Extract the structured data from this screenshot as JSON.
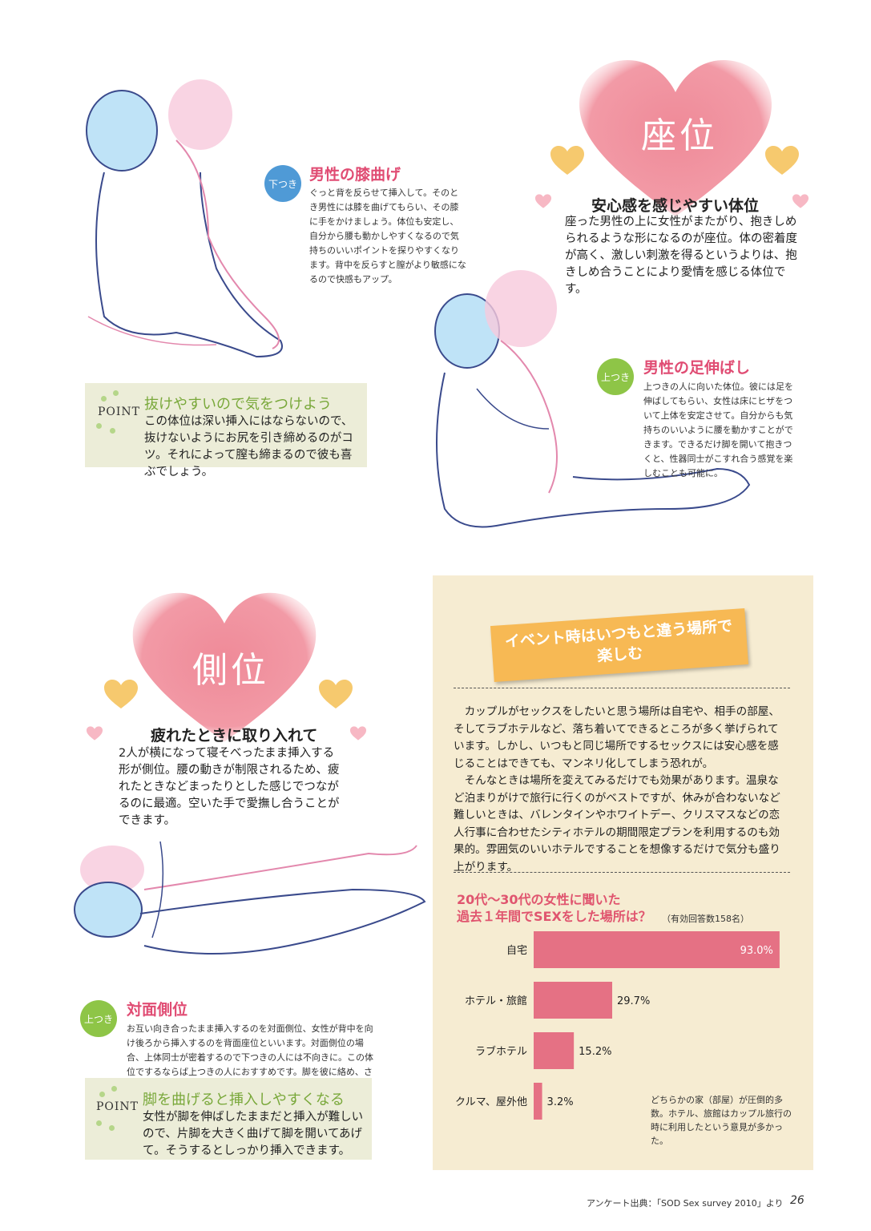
{
  "zai": {
    "title": "座位",
    "subtitle": "安心感を感じやすい体位",
    "intro": "座った男性の上に女性がまたがり、抱きしめられるような形になるのが座位。体の密着度が高く、激しい刺激を得るというよりは、抱きしめ合うことにより愛情を感じる体位です。",
    "pos1": {
      "badge": "下つき",
      "name": "男性の膝曲げ",
      "desc": "ぐっと背を反らせて挿入して。そのとき男性には膝を曲げてもらい、その膝に手をかけましょう。体位も安定し、自分から腰も動かしやすくなるので気持ちのいいポイントを探りやすくなります。背中を反らすと膣がより敏感になるので快感もアップ。"
    },
    "pos2": {
      "badge": "上つき",
      "name": "男性の足伸ばし",
      "desc": "上つきの人に向いた体位。彼には足を伸ばしてもらい、女性は床にヒザをついて上体を安定させて。自分からも気持ちのいいように腰を動かすことができます。できるだけ脚を開いて抱きつくと、性器同士がこすれ合う感覚を楽しむことも可能に。"
    },
    "point": {
      "label": "POINT",
      "title": "抜けやすいので気をつけよう",
      "text": "この体位は深い挿入にはならないので、抜けないようにお尻を引き締めるのがコツ。それによって膣も締まるので彼も喜ぶでしょう。"
    }
  },
  "sokui": {
    "title": "側位",
    "subtitle": "疲れたときに取り入れて",
    "intro": "2人が横になって寝そべったまま挿入する形が側位。腰の動きが制限されるため、疲れたときなどまったりとした感じでつながるのに最適。空いた手で愛撫し合うことができます。",
    "pos1": {
      "badge": "上つき",
      "name": "対面側位",
      "desc": "お互い向き合ったまま挿入するのを対面側位、女性が背中を向け後ろから挿入するのを背面座位といいます。対面側位の場合、上体同士が密着するので下つきの人には不向きに。この体位でするならば上つきの人におすすめです。脚を彼に絡め、さらなる密着感を味わって。"
    },
    "point": {
      "label": "POINT",
      "title": "脚を曲げると挿入しやすくなる",
      "text": "女性が脚を伸ばしたままだと挿入が難しいので、片脚を大きく曲げて脚を開いてあげて。そうするとしっかり挿入できます。"
    }
  },
  "event": {
    "title_line1": "イベント時はいつもと違う場所で",
    "title_line2": "楽しむ",
    "para1": "カップルがセックスをしたいと思う場所は自宅や、相手の部屋、そしてラブホテルなど、落ち着いてできるところが多く挙げられています。しかし、いつもと同じ場所でするセックスには安心感を感じることはできても、マンネリ化してしまう恐れが。",
    "para2": "そんなときは場所を変えてみるだけでも効果があります。温泉など泊まりがけで旅行に行くのがベストですが、休みが合わないなど難しいときは、バレンタインやホワイトデー、クリスマスなどの恋人行事に合わせたシティホテルの期間限定プランを利用するのも効果的。雰囲気のいいホテルですることを想像するだけで気分も盛り上がります。",
    "survey_line1": "20代～30代の女性に聞いた",
    "survey_line2": "過去１年間でSEXをした場所は？",
    "survey_n": "（有効回答数158名）",
    "note": "どちらかの家（部屋）が圧倒的多数。ホテル、旅館はカップル旅行の時に利用したという意見が多かった。"
  },
  "chart_data": {
    "type": "bar",
    "orientation": "horizontal",
    "categories": [
      "自宅",
      "ホテル・旅館",
      "ラブホテル",
      "クルマ、屋外他"
    ],
    "values": [
      93.0,
      29.7,
      15.2,
      3.2
    ],
    "value_labels": [
      "93.0%",
      "29.7%",
      "15.2%",
      "3.2%"
    ],
    "unit": "%",
    "xlim": [
      0,
      100
    ],
    "bar_color": "#e57184",
    "grid": false
  },
  "footer": {
    "source": "アンケート出典：「SOD Sex survey 2010」より",
    "page": "26"
  },
  "colors": {
    "heart_pink": "#ef8a98",
    "heart_small": "#f4bf55",
    "accent_pink": "#e04c73",
    "point_green": "#79a83a",
    "badge_blue": "#4f9ad6",
    "badge_green": "#8ec547",
    "paper": "#f6ecd2",
    "tag_orange": "#f7b954"
  }
}
